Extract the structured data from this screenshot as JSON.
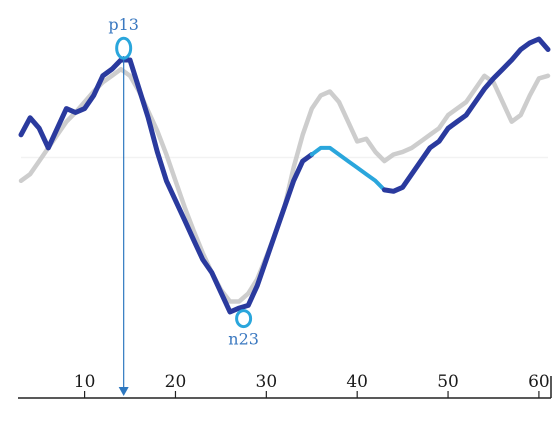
{
  "chart_data": {
    "type": "line",
    "title": "",
    "xlabel": "",
    "ylabel": "",
    "xlim": [
      3,
      62
    ],
    "ylim": [
      -1.2,
      1.0
    ],
    "x_ticks": [
      10,
      20,
      30,
      40,
      50,
      60
    ],
    "grid": false,
    "legend": "none",
    "colors": {
      "main": "#2a3a9e",
      "segment": "#2aa6dc",
      "reference": "#c8c8c8",
      "marker": "#2aa6dc",
      "arrow": "#2e78c0",
      "label": "#3a78c0",
      "axis": "#222222",
      "baseline": "#f2f2f2"
    },
    "series": [
      {
        "style": "reference",
        "x": [
          3,
          4,
          5,
          6,
          7,
          8,
          9,
          10,
          11,
          12,
          13,
          14,
          15,
          16,
          17,
          18,
          19,
          20,
          21,
          22,
          23,
          24,
          25,
          26,
          27,
          28,
          29,
          30,
          31,
          32,
          33,
          34,
          35,
          36,
          37,
          38,
          39,
          40,
          41,
          42,
          43,
          44,
          45,
          46,
          47,
          48,
          49,
          50,
          51,
          52,
          53,
          54,
          55,
          56,
          57,
          58,
          59,
          60,
          61
        ],
        "values": [
          -0.2,
          -0.15,
          -0.05,
          0.05,
          0.15,
          0.25,
          0.32,
          0.4,
          0.48,
          0.55,
          0.6,
          0.65,
          0.6,
          0.48,
          0.33,
          0.18,
          0.0,
          -0.2,
          -0.4,
          -0.58,
          -0.75,
          -0.9,
          -1.03,
          -1.12,
          -1.12,
          -1.06,
          -0.95,
          -0.78,
          -0.6,
          -0.4,
          -0.1,
          0.15,
          0.35,
          0.45,
          0.48,
          0.4,
          0.25,
          0.1,
          0.12,
          0.02,
          -0.05,
          0.0,
          0.02,
          0.05,
          0.1,
          0.15,
          0.2,
          0.3,
          0.35,
          0.4,
          0.5,
          0.6,
          0.55,
          0.4,
          0.25,
          0.3,
          0.45,
          0.58,
          0.6
        ]
      },
      {
        "style": "main",
        "x": [
          3,
          4,
          5,
          6,
          7,
          8,
          9,
          10,
          11,
          12,
          13,
          14,
          15,
          16,
          17,
          18,
          19,
          20,
          21,
          22,
          23,
          24,
          25,
          26,
          27,
          28,
          29,
          30,
          31,
          32,
          33,
          34,
          35
        ],
        "values": [
          0.15,
          0.28,
          0.2,
          0.05,
          0.2,
          0.35,
          0.32,
          0.35,
          0.45,
          0.6,
          0.65,
          0.72,
          0.72,
          0.5,
          0.28,
          0.02,
          -0.2,
          -0.35,
          -0.5,
          -0.65,
          -0.8,
          -0.9,
          -1.05,
          -1.2,
          -1.17,
          -1.15,
          -1.0,
          -0.8,
          -0.6,
          -0.4,
          -0.2,
          -0.05,
          0.0
        ]
      },
      {
        "style": "segment",
        "x": [
          35,
          36,
          37,
          38,
          39,
          40,
          41,
          42,
          43
        ],
        "values": [
          0.0,
          0.05,
          0.05,
          0.0,
          -0.05,
          -0.1,
          -0.15,
          -0.2,
          -0.27
        ]
      },
      {
        "style": "main",
        "x": [
          43,
          44,
          45,
          46,
          47,
          48,
          49,
          50,
          51,
          52,
          53,
          54,
          55,
          56,
          57,
          58,
          59,
          60,
          61
        ],
        "values": [
          -0.27,
          -0.28,
          -0.25,
          -0.15,
          -0.05,
          0.05,
          0.1,
          0.2,
          0.25,
          0.3,
          0.4,
          0.5,
          0.58,
          0.65,
          0.72,
          0.8,
          0.85,
          0.88,
          0.8
        ]
      }
    ],
    "annotations": [
      {
        "label": "p13",
        "x": 14.3,
        "y": 0.81,
        "position": "above"
      },
      {
        "label": "n23",
        "x": 27.5,
        "y": -1.25,
        "position": "below"
      }
    ],
    "arrow": {
      "x": 14.3,
      "y_from": 0.72,
      "to": "axis"
    }
  }
}
